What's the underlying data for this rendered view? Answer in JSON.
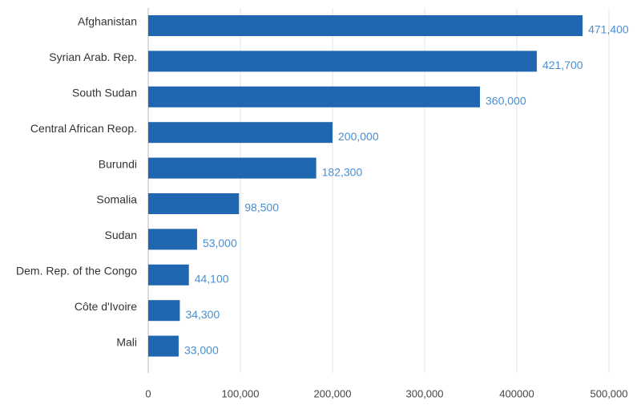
{
  "chart_data": {
    "type": "bar",
    "orientation": "horizontal",
    "categories": [
      "Afghanistan",
      "Syrian Arab. Rep.",
      "South Sudan",
      "Central African Reop.",
      "Burundi",
      "Somalia",
      "Sudan",
      "Dem. Rep. of the Congo",
      "Côte d'Ivoire",
      "Mali"
    ],
    "values": [
      471400,
      421700,
      360000,
      200000,
      182300,
      98500,
      53000,
      44100,
      34300,
      33000
    ],
    "value_labels": [
      "471,400",
      "421,700",
      "360,000",
      "200,000",
      "182,300",
      "98,500",
      "53,000",
      "44,100",
      "34,300",
      "33,000"
    ],
    "color": "#1f67b1",
    "xlim": [
      0,
      500000
    ],
    "xticks": [
      0,
      {
        "value": 100000,
        "label": "100,000"
      },
      {
        "value": 200000,
        "label": "200,000"
      },
      {
        "value": 300000,
        "label": "300,000"
      },
      400000,
      {
        "value": 500000,
        "label": "500,000"
      }
    ],
    "grid": true
  }
}
